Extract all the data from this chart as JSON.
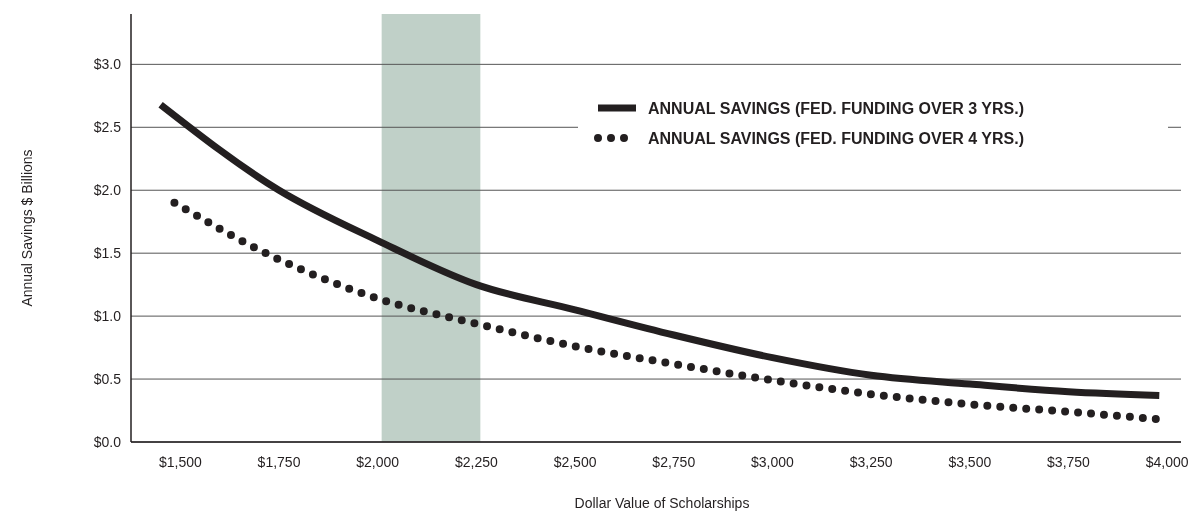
{
  "chart_data": {
    "type": "line",
    "xlabel": "Dollar Value of Scholarships",
    "ylabel": "Annual Savings $ Billions",
    "xlim": [
      1375,
      4035
    ],
    "ylim": [
      0,
      3.4
    ],
    "xticks": [
      {
        "value": 1500,
        "label": "$1,500"
      },
      {
        "value": 1750,
        "label": "$1,750"
      },
      {
        "value": 2000,
        "label": "$2,000"
      },
      {
        "value": 2250,
        "label": "$2,250"
      },
      {
        "value": 2500,
        "label": "$2,500"
      },
      {
        "value": 2750,
        "label": "$2,750"
      },
      {
        "value": 3000,
        "label": "$3,000"
      },
      {
        "value": 3250,
        "label": "$3,250"
      },
      {
        "value": 3500,
        "label": "$3,500"
      },
      {
        "value": 3750,
        "label": "$3,750"
      },
      {
        "value": 4000,
        "label": "$4,000"
      }
    ],
    "yticks": [
      {
        "value": 0,
        "label": "$0.0"
      },
      {
        "value": 0.5,
        "label": "$0.5"
      },
      {
        "value": 1,
        "label": "$1.0"
      },
      {
        "value": 1.5,
        "label": "$1.5"
      },
      {
        "value": 2,
        "label": "$2.0"
      },
      {
        "value": 2.5,
        "label": "$2.5"
      },
      {
        "value": 3,
        "label": "$3.0"
      }
    ],
    "grid": "y",
    "legend": "top right",
    "marker": "none",
    "bands": [
      {
        "axis": "x",
        "from": 2010,
        "to": 2260,
        "color": "#c0d0c8"
      }
    ],
    "series": [
      {
        "name": "ANNUAL SAVINGS (FED. FUNDING OVER 3 YRS.)",
        "color": "#231f20",
        "line_style": "solid",
        "x": [
          1450,
          1750,
          2000,
          2250,
          2500,
          2750,
          3000,
          3250,
          3500,
          3750,
          3980
        ],
        "values": [
          2.68,
          2.0,
          1.6,
          1.25,
          1.05,
          0.85,
          0.67,
          0.53,
          0.46,
          0.4,
          0.37
        ]
      },
      {
        "name": "ANNUAL SAVINGS (FED. FUNDING OVER 4 YRS.)",
        "color": "#231f20",
        "line_style": "dotted",
        "x": [
          1485,
          1750,
          2000,
          2250,
          2500,
          2750,
          3000,
          3250,
          3500,
          3750,
          3980
        ],
        "values": [
          1.9,
          1.45,
          1.14,
          0.94,
          0.76,
          0.62,
          0.49,
          0.38,
          0.3,
          0.24,
          0.18
        ]
      }
    ]
  }
}
